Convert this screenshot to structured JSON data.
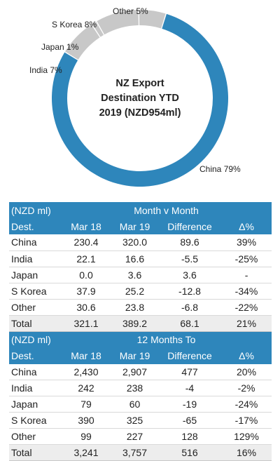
{
  "chart_data": [
    {
      "type": "pie",
      "title_lines": [
        "NZ Export",
        "Destination YTD",
        "2019 (NZD954ml)"
      ],
      "slices": [
        {
          "label": "China 79%",
          "value": 79,
          "color": "#2e86bb"
        },
        {
          "label": "India 7%",
          "value": 7,
          "color": "#c8c8c8"
        },
        {
          "label": "Japan 1%",
          "value": 1,
          "color": "#c8c8c8"
        },
        {
          "label": "S Korea 8%",
          "value": 8,
          "color": "#c8c8c8"
        },
        {
          "label": "Other 5%",
          "value": 5,
          "color": "#c8c8c8"
        }
      ]
    },
    {
      "type": "table",
      "unit_label": "(NZD ml)",
      "title": "Month v Month",
      "columns": [
        "Dest.",
        "Mar 18",
        "Mar 19",
        "Difference",
        "Δ%"
      ],
      "rows": [
        [
          "China",
          "230.4",
          "320.0",
          "89.6",
          "39%"
        ],
        [
          "India",
          "22.1",
          "16.6",
          "-5.5",
          "-25%"
        ],
        [
          "Japan",
          "0.0",
          "3.6",
          "3.6",
          "-"
        ],
        [
          "S Korea",
          "37.9",
          "25.2",
          "-12.8",
          "-34%"
        ],
        [
          "Other",
          "30.6",
          "23.8",
          "-6.8",
          "-22%"
        ]
      ],
      "total": [
        "Total",
        "321.1",
        "389.2",
        "68.1",
        "21%"
      ]
    },
    {
      "type": "table",
      "unit_label": "(NZD ml)",
      "title": "12 Months To",
      "columns": [
        "Dest.",
        "Mar 18",
        "Mar 19",
        "Difference",
        "Δ%"
      ],
      "rows": [
        [
          "China",
          "2,430",
          "2,907",
          "477",
          "20%"
        ],
        [
          "India",
          "242",
          "238",
          "-4",
          "-2%"
        ],
        [
          "Japan",
          "79",
          "60",
          "-19",
          "-24%"
        ],
        [
          "S Korea",
          "390",
          "325",
          "-65",
          "-17%"
        ],
        [
          "Other",
          "99",
          "227",
          "128",
          "129%"
        ]
      ],
      "total": [
        "Total",
        "3,241",
        "3,757",
        "516",
        "16%"
      ]
    }
  ]
}
